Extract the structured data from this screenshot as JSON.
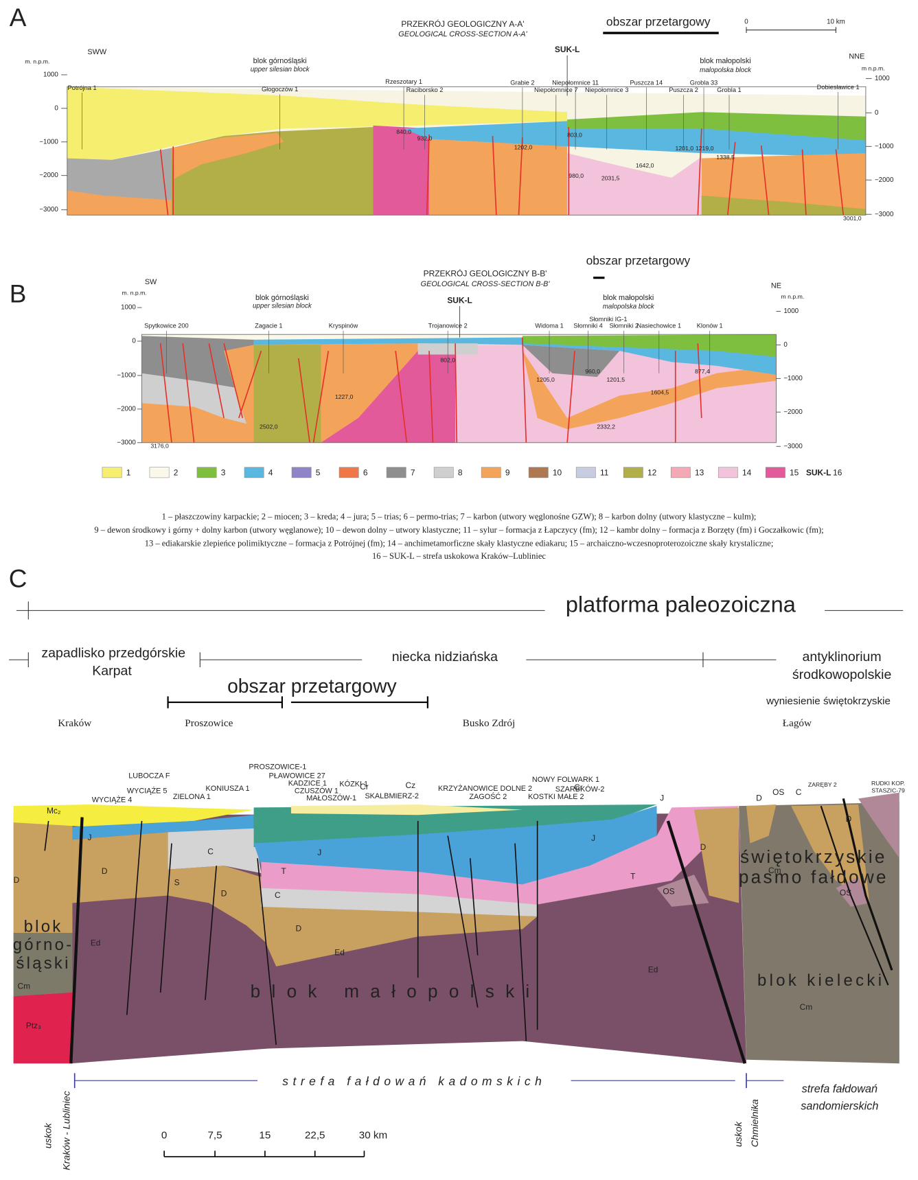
{
  "panel_a": {
    "letter": "A",
    "title": "PRZEKRÓJ GEOLOGICZNY A-A'",
    "subtitle": "GEOLOGICAL CROSS-SECTION A-A'",
    "area": "obszar przetargowy",
    "scale": [
      "0",
      "10 km"
    ],
    "left_dir": "SWW",
    "right_dir": "NNE",
    "unit_left": "m. n.p.m.",
    "unit_right": "m n.p.m.",
    "fault": "SUK-L",
    "blocks": [
      {
        "name": "blok górnośląski",
        "en": "upper silesian block"
      },
      {
        "name": "blok małopolski",
        "en": "malopolska block"
      }
    ],
    "depth_ticks_left": [
      "1000",
      "0",
      "−1000",
      "−2000",
      "−3000"
    ],
    "depth_ticks_right": [
      "1000",
      "0",
      "−1000",
      "−2000",
      "−3000"
    ],
    "wells": [
      "Potrójna 1",
      "Głogoczów 1",
      "Rzeszotary 1",
      "Raciborsko 2",
      "Grabie 2",
      "Niepołomnice 11",
      "Niepołomnice 7",
      "Niepołomnice 3",
      "Puszcza 14",
      "Puszcza 2",
      "Grobla 33",
      "Grobla 1",
      "Dobiesławice 1"
    ],
    "depths": [
      "840,0",
      "932,0",
      "1202,0",
      "803,0",
      "980,0",
      "2031,5",
      "1642,0",
      "1201,0",
      "1219,0",
      "1338,5",
      "3001,0"
    ]
  },
  "panel_b": {
    "letter": "B",
    "title": "PRZEKRÓJ GEOLOGICZNY B-B'",
    "subtitle": "GEOLOGICAL CROSS-SECTION B-B'",
    "area": "obszar przetargowy",
    "left_dir": "SW",
    "right_dir": "NE",
    "unit_left": "m. n.p.m.",
    "unit_right": "m n.p.m.",
    "fault": "SUK-L",
    "blocks": [
      {
        "name": "blok górnośląski",
        "en": "upper silesian block"
      },
      {
        "name": "blok małopolski",
        "en": "malopolska block"
      }
    ],
    "depth_ticks_left": [
      "1000",
      "0",
      "−1000",
      "−2000",
      "−3000"
    ],
    "depth_ticks_right": [
      "1000",
      "0",
      "−1000",
      "−2000",
      "−3000"
    ],
    "wells": [
      "Spytkowice 200",
      "Zagacie 1",
      "Kryspinów",
      "Trojanowice 2",
      "Widoma 1",
      "Słomniki IG-1",
      "Słomniki 4",
      "Słomniki 2",
      "Nasiechowice 1",
      "Klonów 1"
    ],
    "depths": [
      "3176,0",
      "2502,0",
      "1227,0",
      "802,0",
      "1205,0",
      "960,0",
      "1201,5",
      "2332,2",
      "1604,5",
      "877,4"
    ]
  },
  "legend": {
    "items": [
      {
        "number": "1",
        "color": "#f5ee6e"
      },
      {
        "number": "2",
        "color": "#fbf8ea"
      },
      {
        "number": "3",
        "color": "#7fbf3f"
      },
      {
        "number": "4",
        "color": "#5ab8e0"
      },
      {
        "number": "5",
        "color": "#8d85c8"
      },
      {
        "number": "6",
        "color": "#f07848"
      },
      {
        "number": "7",
        "color": "#8e8e8e"
      },
      {
        "number": "8",
        "color": "#cfcfcf"
      },
      {
        "number": "9",
        "color": "#f4a35a"
      },
      {
        "number": "10",
        "color": "#b07850"
      },
      {
        "number": "11",
        "color": "#c8cce0"
      },
      {
        "number": "12",
        "color": "#b2ae48"
      },
      {
        "number": "13",
        "color": "#f4a8b4"
      },
      {
        "number": "14",
        "color": "#f3c3dc"
      },
      {
        "number": "15",
        "color": "#e25a9a"
      }
    ],
    "fault_label": "SUK-L",
    "fault_number": "16",
    "description": [
      "1 – płaszczowiny karpackie; 2 – miocen; 3 – kreda; 4 – jura; 5 – trias; 6 – permo-trias; 7 – karbon (utwory węglonośne GZW); 8 – karbon dolny (utwory klastyczne – kulm);",
      "9 – dewon środkowy i górny + dolny karbon (utwory węglanowe); 10 – dewon dolny – utwory klastyczne; 11 – sylur – formacja z Łapczycy (fm); 12 – kambr dolny – formacja z Borzęty (fm) i Goczałkowic (fm);",
      "13 – ediakarskie zlepieńce polimiktyczne – formacja z Potrójnej (fm); 14 – anchimetamorficzne skały klastyczne ediakaru; 15 – archaiczno-wczesnoproterozoiczne skały krystaliczne;",
      "16 – SUK-L – strefa uskokowa Kraków–Lubliniec"
    ]
  },
  "panel_c": {
    "letter": "C",
    "platform": "platforma paleozoiczna",
    "foredeep": [
      "zapadlisko przedgórskie",
      "Karpat"
    ],
    "trough": "niecka nidziańska",
    "anticlinorium": [
      "antyklinorium",
      "środkowopolskie"
    ],
    "area": "obszar przetargowy",
    "uplift": "wyniesienie świętokrzyskie",
    "towns": [
      "Kraków",
      "Proszowice",
      "Busko Zdrój",
      "Łagów"
    ],
    "wells": [
      "LUBOCZA F",
      "WYCIĄŻE 5",
      "WYCIĄŻE 4",
      "ZIELONA 1",
      "KONIUSZA 1",
      "PROSZOWICE-1",
      "PŁAWOWICE 27",
      "KADZICE 1",
      "CZUSZÓW 1",
      "MAŁOSZÓW-1",
      "KÓZKI 1",
      "SKALBMIERZ-2",
      "KRZYŻANOWICE DOLNE 2",
      "ZAGOŚĆ 2",
      "KOSTKI MAŁE 2",
      "NOWY FOLWARK 1",
      "SZARBKÓW-2",
      "ZARĘBY 2",
      "RUDKI KOP.",
      "STASZIC-79"
    ],
    "units": [
      "D",
      "Mc₂",
      "J",
      "D",
      "C",
      "S",
      "D",
      "Cr",
      "Cz",
      "J",
      "T",
      "C",
      "D",
      "Ed",
      "Ed",
      "Ed",
      "Cm",
      "Ptz₃",
      "Cr",
      "J",
      "T",
      "D",
      "J",
      "OS",
      "D",
      "OS",
      "C",
      "D",
      "Cm",
      "OS",
      "Cm"
    ],
    "block_upper_silesian": [
      "blok",
      "górno-",
      "śląski"
    ],
    "block_malopolska": "blok małopolski",
    "fold_belt": [
      "świętokrzyskie",
      "pasmo fałdowe"
    ],
    "block_kielce": "blok kielecki",
    "cadomian_zone": "strefa fałdowań kadomskich",
    "sandomierz_zone": [
      "strefa fałdowań",
      "sandomierskich"
    ],
    "fault_krakow": [
      "uskok",
      "Kraków - Lubliniec"
    ],
    "fault_chmielnik": [
      "uskok",
      "Chmielnika"
    ],
    "scale": [
      "0",
      "7,5",
      "15",
      "22,5",
      "30 km"
    ]
  }
}
